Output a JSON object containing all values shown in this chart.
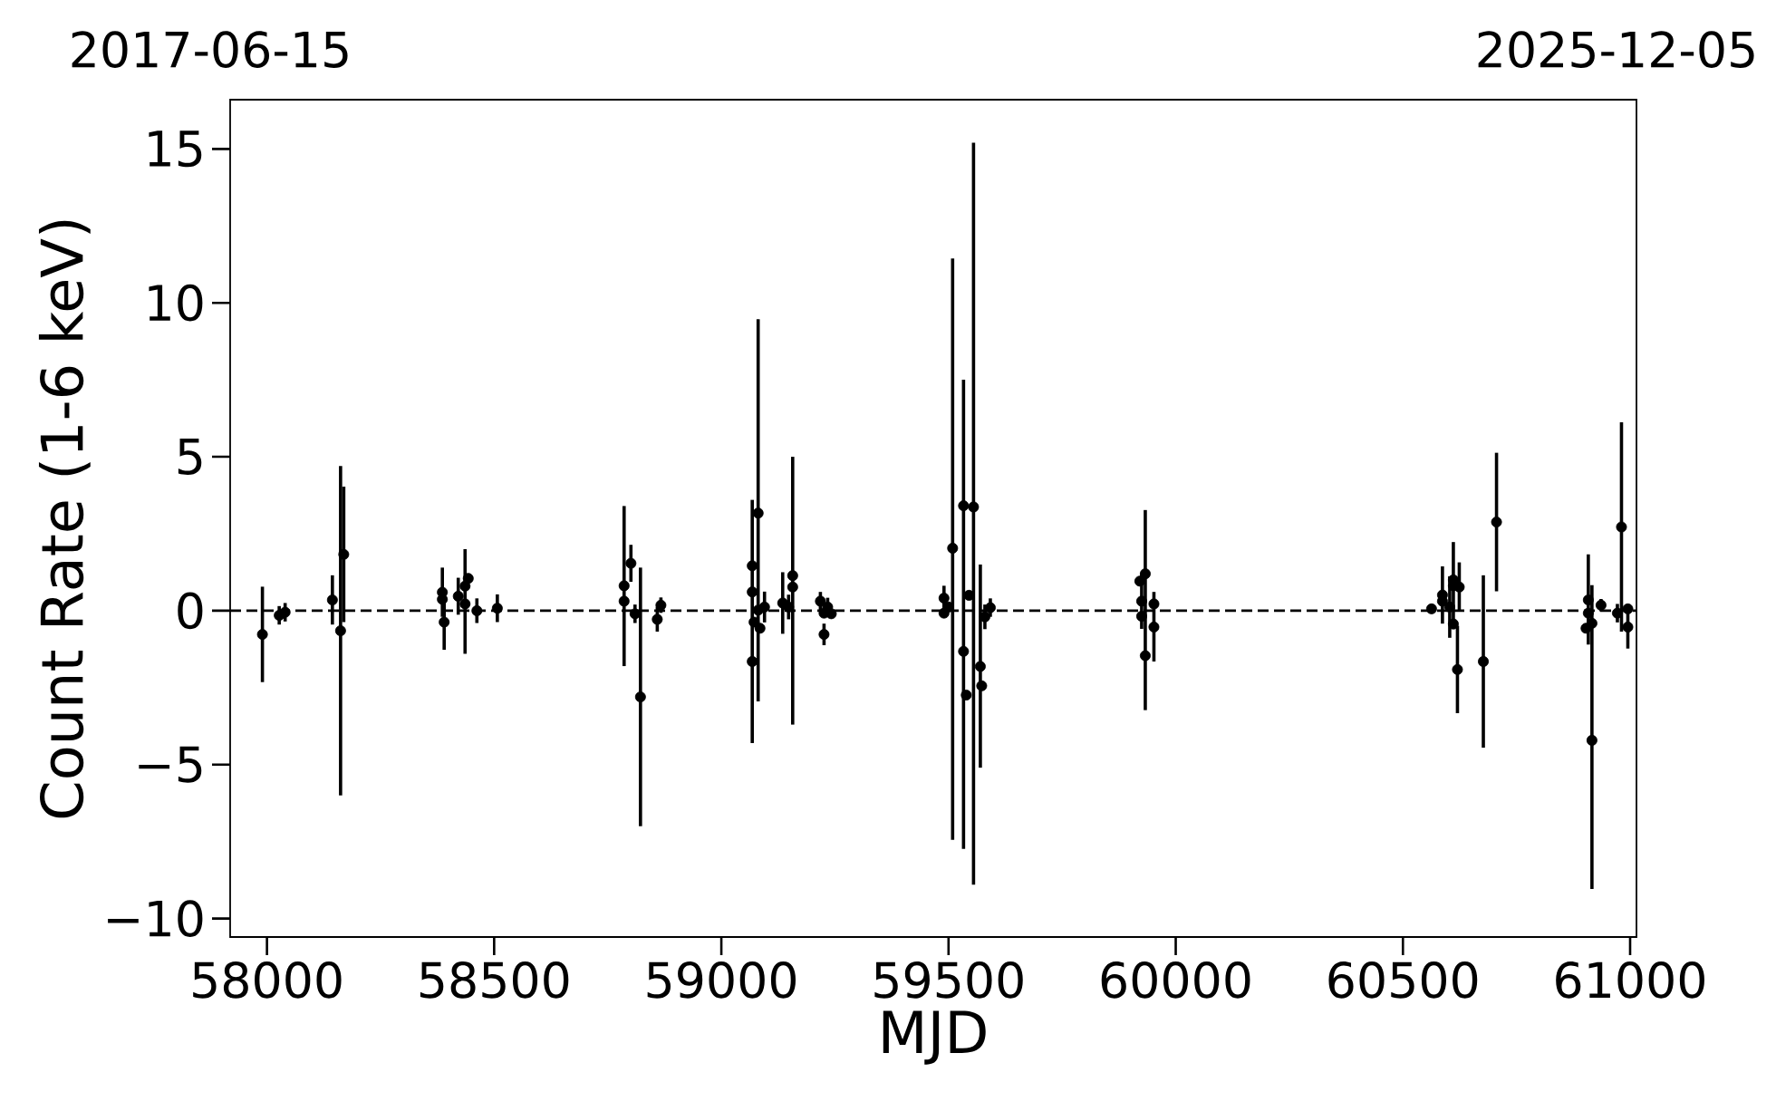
{
  "chart_data": {
    "type": "scatter",
    "xlabel": "MJD",
    "ylabel": "Count Rate (1-6 keV)",
    "marker": "circle",
    "color": "#000000",
    "x": [
      57990,
      58027,
      58040,
      58144,
      58162,
      58169,
      58386,
      58386,
      58390,
      58421,
      58436,
      58443,
      58436,
      58462,
      58507,
      58786,
      58786,
      58801,
      58810,
      58822,
      58859,
      58867,
      59068,
      59068,
      59068,
      59072,
      59081,
      59081,
      59085,
      59095,
      59135,
      59148,
      59157,
      59157,
      59218,
      59226,
      59226,
      59234,
      59242,
      59490,
      59490,
      59500,
      59509,
      59533,
      59533,
      59539,
      59555,
      59570,
      59573,
      59545,
      59580,
      59592,
      59933,
      59933,
      59925,
      59925,
      59921,
      59952,
      59952,
      60563,
      60587,
      60587,
      60603,
      60611,
      60611,
      60611,
      60620,
      60624,
      60677,
      60706,
      60908,
      60908,
      60903,
      60916,
      60916,
      60936,
      60972,
      60981,
      60995,
      60995
    ],
    "values": [
      -0.77,
      -0.15,
      -0.05,
      0.35,
      -0.65,
      1.83,
      0.6,
      0.37,
      -0.37,
      0.47,
      0.8,
      1.05,
      0.22,
      0.0,
      0.08,
      0.81,
      0.31,
      1.54,
      -0.1,
      -2.8,
      -0.28,
      0.18,
      1.46,
      0.61,
      -1.65,
      -0.37,
      3.17,
      0.02,
      -0.57,
      0.12,
      0.25,
      0.12,
      1.14,
      0.77,
      0.31,
      -0.77,
      -0.08,
      0.12,
      -0.1,
      0.41,
      -0.08,
      0.12,
      2.03,
      -1.32,
      3.41,
      -2.74,
      3.37,
      -1.81,
      -2.44,
      0.5,
      -0.2,
      0.1,
      1.2,
      -1.46,
      0.31,
      -0.18,
      0.96,
      -0.53,
      0.22,
      0.06,
      0.51,
      0.31,
      0.12,
      1.0,
      0.81,
      -0.43,
      -1.91,
      0.77,
      -1.65,
      2.88,
      0.35,
      -0.08,
      -0.57,
      -4.21,
      -0.41,
      0.18,
      -0.08,
      2.72,
      -0.53,
      0.06
    ],
    "errors": [
      1.55,
      0.3,
      0.3,
      0.8,
      5.35,
      2.2,
      0.8,
      null,
      0.9,
      0.6,
      [
        -1.4,
        2.0
      ],
      null,
      null,
      0.4,
      0.45,
      [
        -1.8,
        3.4
      ],
      null,
      0.6,
      0.3,
      4.2,
      0.4,
      0.25,
      [
        -4.3,
        3.6
      ],
      null,
      null,
      null,
      [
        -2.95,
        9.47
      ],
      null,
      null,
      0.5,
      1.0,
      0.4,
      [
        -3.7,
        5.0
      ],
      null,
      0.3,
      0.35,
      null,
      0.3,
      null,
      0.4,
      null,
      null,
      [
        -7.44,
        11.44
      ],
      [
        -7.74,
        7.5
      ],
      null,
      null,
      [
        -8.9,
        15.2
      ],
      [
        -5.1,
        1.5
      ],
      null,
      null,
      0.4,
      0.3,
      [
        -3.23,
        3.27
      ],
      null,
      0.9,
      null,
      null,
      [
        -1.65,
        0.61
      ],
      null,
      0.15,
      0.93,
      null,
      1.0,
      [
        -0.6,
        2.23
      ],
      null,
      null,
      [
        -3.33,
        -0.49
      ],
      0.8,
      2.8,
      2.25,
      [
        -1.1,
        1.83
      ],
      null,
      null,
      [
        -9.04,
        0.83
      ],
      null,
      0.2,
      0.3,
      3.4,
      0.7,
      null
    ],
    "xlim": [
      57919,
      61014
    ],
    "ylim": [
      -10.6,
      16.6
    ],
    "xticks": [
      58000,
      58500,
      59000,
      59500,
      60000,
      60500,
      61000
    ],
    "yticks": [
      {
        "value": -10,
        "label": "−10"
      },
      {
        "value": -5,
        "label": "−5"
      },
      0,
      5,
      10,
      15
    ],
    "x2lim": [
      "2017-06-15",
      "2025-12-05"
    ],
    "x2ticks": [
      "2017-06-15",
      "2025-12-05"
    ],
    "ref_lines": [
      {
        "axis": "y",
        "value": 0,
        "color": "#000000",
        "line_style": "dashed"
      }
    ]
  }
}
